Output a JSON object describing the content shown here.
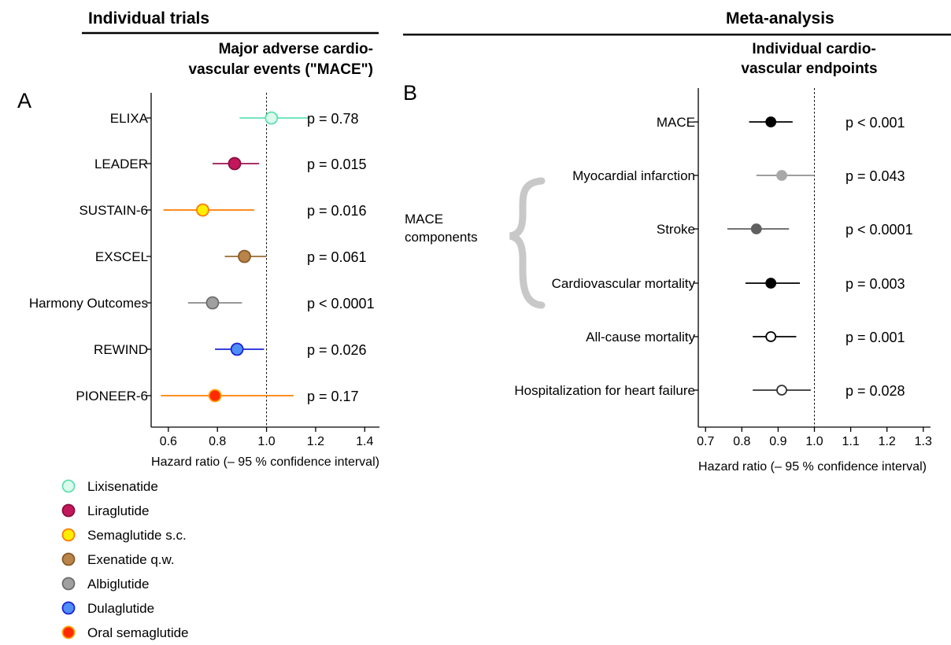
{
  "left": {
    "section_title": "Individual trials",
    "subtitle_lines": [
      "Major adverse cardio-",
      "vascular events (\"MACE\")"
    ],
    "panel_label": "A",
    "xlabel": "Hazard ratio (– 95 % confidence interval)"
  },
  "right": {
    "section_title": "Meta-analysis",
    "subtitle_lines": [
      "Individual cardio-",
      "vascular endpoints"
    ],
    "panel_label": "B",
    "xlabel": "Hazard ratio (– 95 % confidence interval)",
    "brace_label_lines": [
      "MACE",
      "components"
    ]
  },
  "legend": [
    {
      "label": "Lixisenatide",
      "fill": "#dcfaee",
      "stroke": "#5fe0b0"
    },
    {
      "label": "Liraglutide",
      "fill": "#c2185b",
      "stroke": "#8a0e3e"
    },
    {
      "label": "Semaglutide s.c.",
      "fill": "#ffee00",
      "stroke": "#ff7a00"
    },
    {
      "label": "Exenatide q.w.",
      "fill": "#b8844a",
      "stroke": "#8a5a26"
    },
    {
      "label": "Albiglutide",
      "fill": "#a0a0a0",
      "stroke": "#6e6e6e"
    },
    {
      "label": "Dulaglutide",
      "fill": "#4f8ef7",
      "stroke": "#1a24d6"
    },
    {
      "label": "Oral semaglutide",
      "fill": "#ff2a00",
      "stroke": "#ffa000"
    }
  ],
  "chart_data": [
    {
      "type": "forest",
      "title": "Major adverse cardio-vascular events (\"MACE\")",
      "xlabel": "Hazard ratio (– 95 % confidence interval)",
      "xlim": [
        0.53,
        1.46
      ],
      "xticks": [
        0.6,
        0.8,
        1.0,
        1.2,
        1.4
      ],
      "xtick_labels": [
        "0.6",
        "0.8",
        "1.0",
        "1.2",
        "1.4"
      ],
      "reference_line": 1.0,
      "rows": [
        {
          "label": "ELIXA",
          "hr": 1.02,
          "lo": 0.89,
          "hi": 1.17,
          "p": "p = 0.78",
          "fill": "#dcfaee",
          "stroke": "#5fe0b0",
          "line": "#5fe0b0"
        },
        {
          "label": "LEADER",
          "hr": 0.87,
          "lo": 0.78,
          "hi": 0.97,
          "p": "p = 0.015",
          "fill": "#c2185b",
          "stroke": "#8a0e3e",
          "line": "#9c1450"
        },
        {
          "label": "SUSTAIN-6",
          "hr": 0.74,
          "lo": 0.58,
          "hi": 0.95,
          "p": "p = 0.016",
          "fill": "#ffee00",
          "stroke": "#ff7a00",
          "line": "#ff7a00"
        },
        {
          "label": "EXSCEL",
          "hr": 0.91,
          "lo": 0.83,
          "hi": 1.0,
          "p": "p = 0.061",
          "fill": "#b8844a",
          "stroke": "#8a5a26",
          "line": "#9a6a35"
        },
        {
          "label": "Harmony Outcomes",
          "hr": 0.78,
          "lo": 0.68,
          "hi": 0.9,
          "p": "p < 0.0001",
          "fill": "#a0a0a0",
          "stroke": "#6e6e6e",
          "line": "#8a8a8a"
        },
        {
          "label": "REWIND",
          "hr": 0.88,
          "lo": 0.79,
          "hi": 0.99,
          "p": "p = 0.026",
          "fill": "#4f8ef7",
          "stroke": "#1a24d6",
          "line": "#1a24d6"
        },
        {
          "label": "PIONEER-6",
          "hr": 0.79,
          "lo": 0.57,
          "hi": 1.11,
          "p": "p = 0.17",
          "fill": "#ff2a00",
          "stroke": "#ffa000",
          "line": "#ff8000"
        }
      ]
    },
    {
      "type": "forest",
      "title": "Individual cardio-vascular endpoints",
      "xlabel": "Hazard ratio (– 95 % confidence interval)",
      "xlim": [
        0.68,
        1.32
      ],
      "xticks": [
        0.7,
        0.8,
        0.9,
        1.0,
        1.1,
        1.2,
        1.3
      ],
      "xtick_labels": [
        "0.7",
        "0.8",
        "0.9",
        "1.0",
        "1.1",
        "1.2",
        "1.3"
      ],
      "reference_line": 1.0,
      "rows": [
        {
          "label": "MACE",
          "hr": 0.88,
          "lo": 0.82,
          "hi": 0.94,
          "p": "p < 0.001",
          "fill": "#000000",
          "stroke": "#000000",
          "line": "#000000"
        },
        {
          "label": "Myocardial infarction",
          "hr": 0.91,
          "lo": 0.84,
          "hi": 1.0,
          "p": "p = 0.043",
          "fill": "#a8a8a8",
          "stroke": "#a8a8a8",
          "line": "#909090"
        },
        {
          "label": "Stroke",
          "hr": 0.84,
          "lo": 0.76,
          "hi": 0.93,
          "p": "p < 0.0001",
          "fill": "#606060",
          "stroke": "#606060",
          "line": "#606060"
        },
        {
          "label": "Cardiovascular mortality",
          "hr": 0.88,
          "lo": 0.81,
          "hi": 0.96,
          "p": "p = 0.003",
          "fill": "#000000",
          "stroke": "#000000",
          "line": "#000000"
        },
        {
          "label": "All-cause mortality",
          "hr": 0.88,
          "lo": 0.83,
          "hi": 0.95,
          "p": "p = 0.001",
          "fill": "#ffffff",
          "stroke": "#000000",
          "line": "#000000"
        },
        {
          "label": "Hospitalization for heart failure",
          "hr": 0.91,
          "lo": 0.83,
          "hi": 0.99,
          "p": "p = 0.028",
          "fill": "#ffffff",
          "stroke": "#333333",
          "line": "#333333"
        }
      ]
    }
  ]
}
